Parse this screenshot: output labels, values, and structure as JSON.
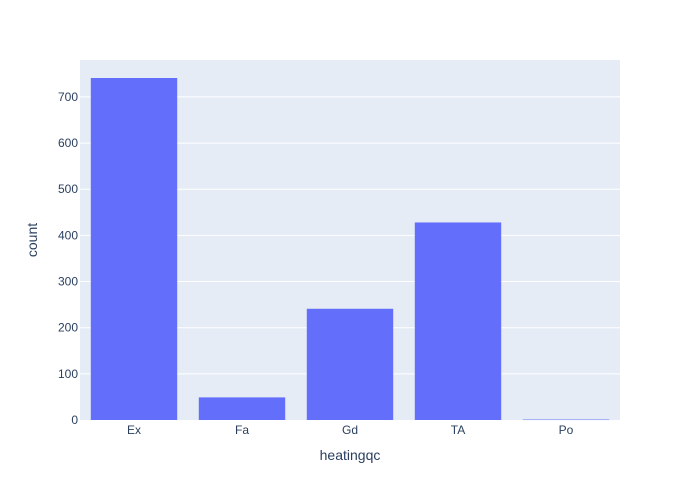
{
  "chart_data": {
    "type": "bar",
    "title": "",
    "xlabel": "heatingqc",
    "ylabel": "count",
    "categories": [
      "Ex",
      "Fa",
      "Gd",
      "TA",
      "Po"
    ],
    "series": [
      {
        "values": [
          741,
          49,
          241,
          428,
          1
        ]
      }
    ],
    "ylim": [
      0,
      780
    ],
    "yticks": [
      0,
      100,
      200,
      300,
      400,
      500,
      600,
      700
    ],
    "grid": true,
    "legend": "none",
    "colors": {
      "bar": "#636efa",
      "plot_background": "#e5ecf6",
      "gridline": "#ffffff",
      "text": "#2a3f5f"
    }
  }
}
